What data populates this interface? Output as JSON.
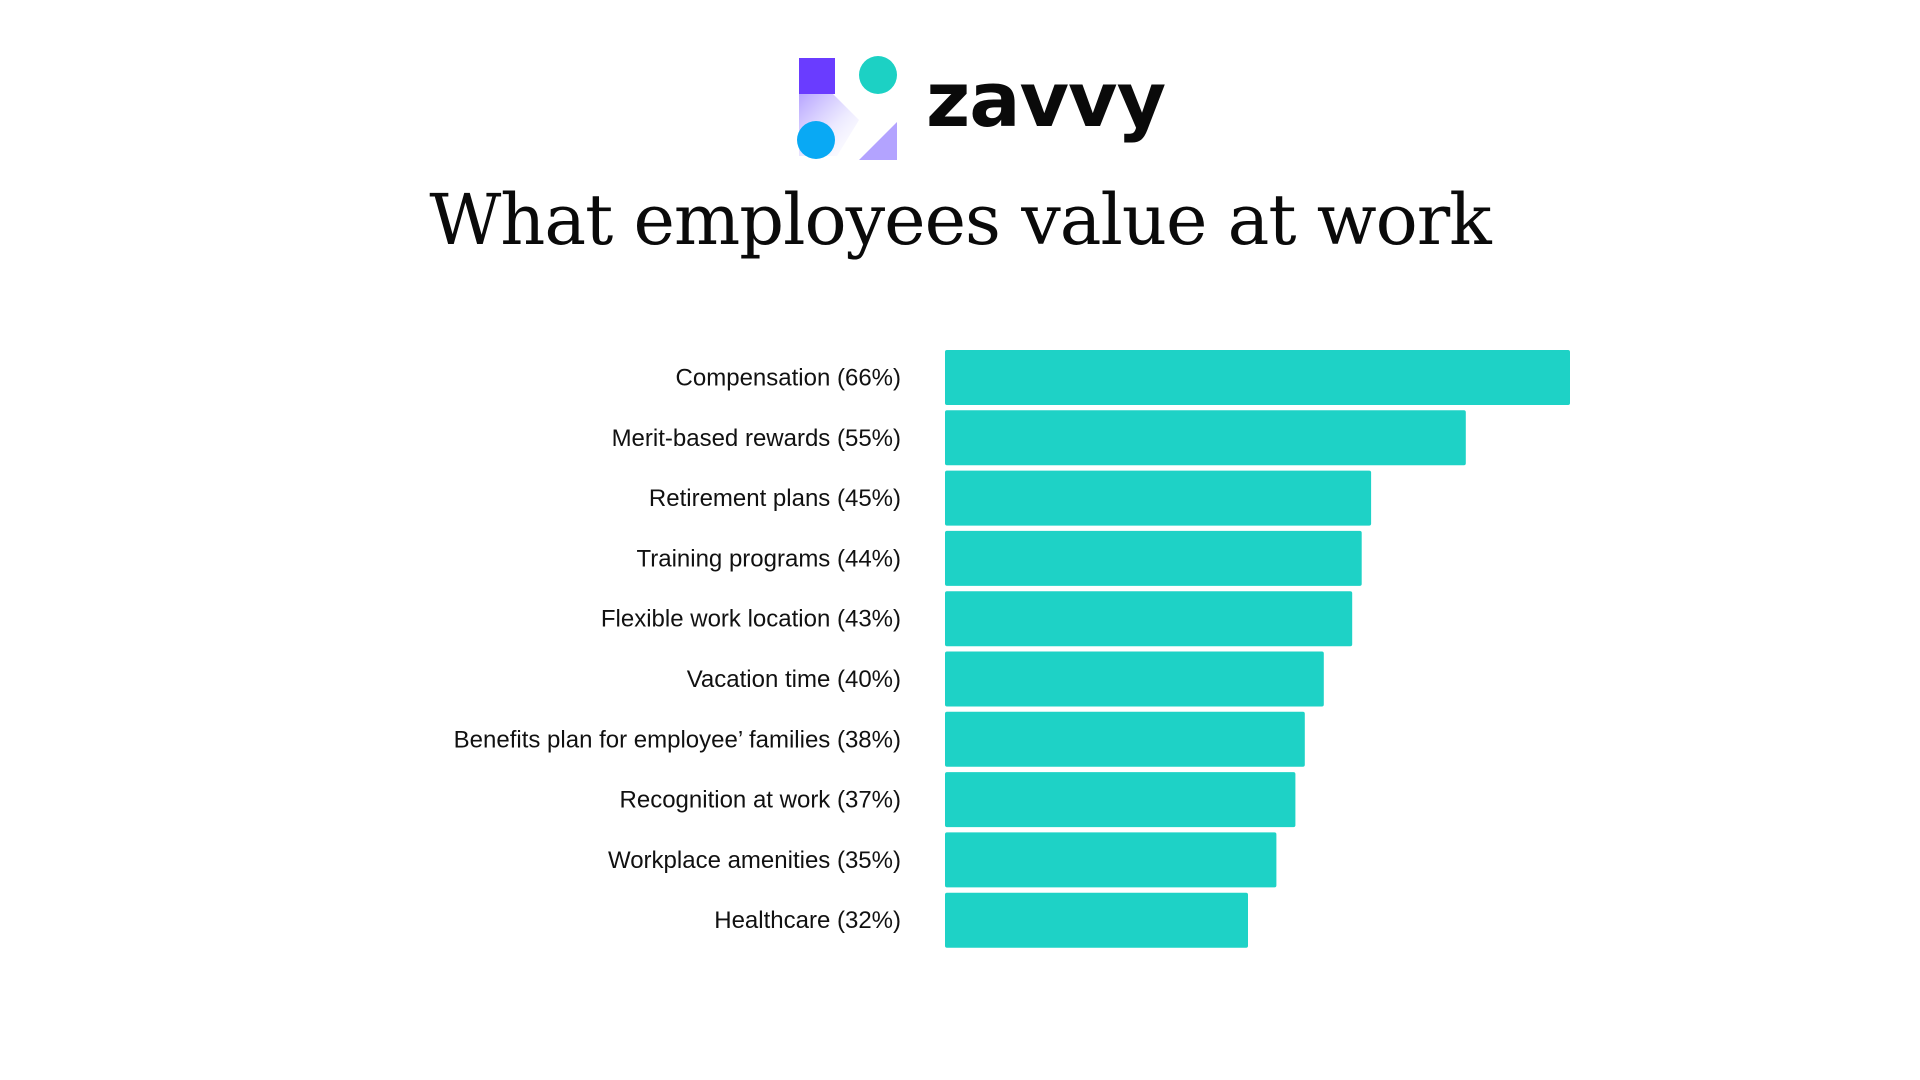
{
  "brand": {
    "name": "zavvy",
    "logo_icon": "zavvy-logo-icon",
    "colors": {
      "square": "#6a3cff",
      "teal_circle": "#1cd1c4",
      "blue_circle": "#09a9f4",
      "triangle": "#b3a3ff"
    }
  },
  "chart_data": {
    "type": "bar",
    "orientation": "horizontal",
    "title": "What employees value at work",
    "xlabel": "",
    "ylabel": "",
    "grid": false,
    "legend": "none",
    "bar_color": "#1ed2c6",
    "xlim": [
      0,
      66
    ],
    "categories": [
      "Compensation (66%)",
      "Merit-based rewards (55%)",
      "Retirement plans (45%)",
      "Training programs (44%)",
      "Flexible work location (43%)",
      "Vacation time (40%)",
      "Benefits plan for employee’ families (38%)",
      "Recognition at work (37%)",
      "Workplace amenities (35%)",
      "Healthcare (32%)"
    ],
    "values": [
      66,
      55,
      45,
      44,
      43,
      40,
      38,
      37,
      35,
      32
    ]
  }
}
